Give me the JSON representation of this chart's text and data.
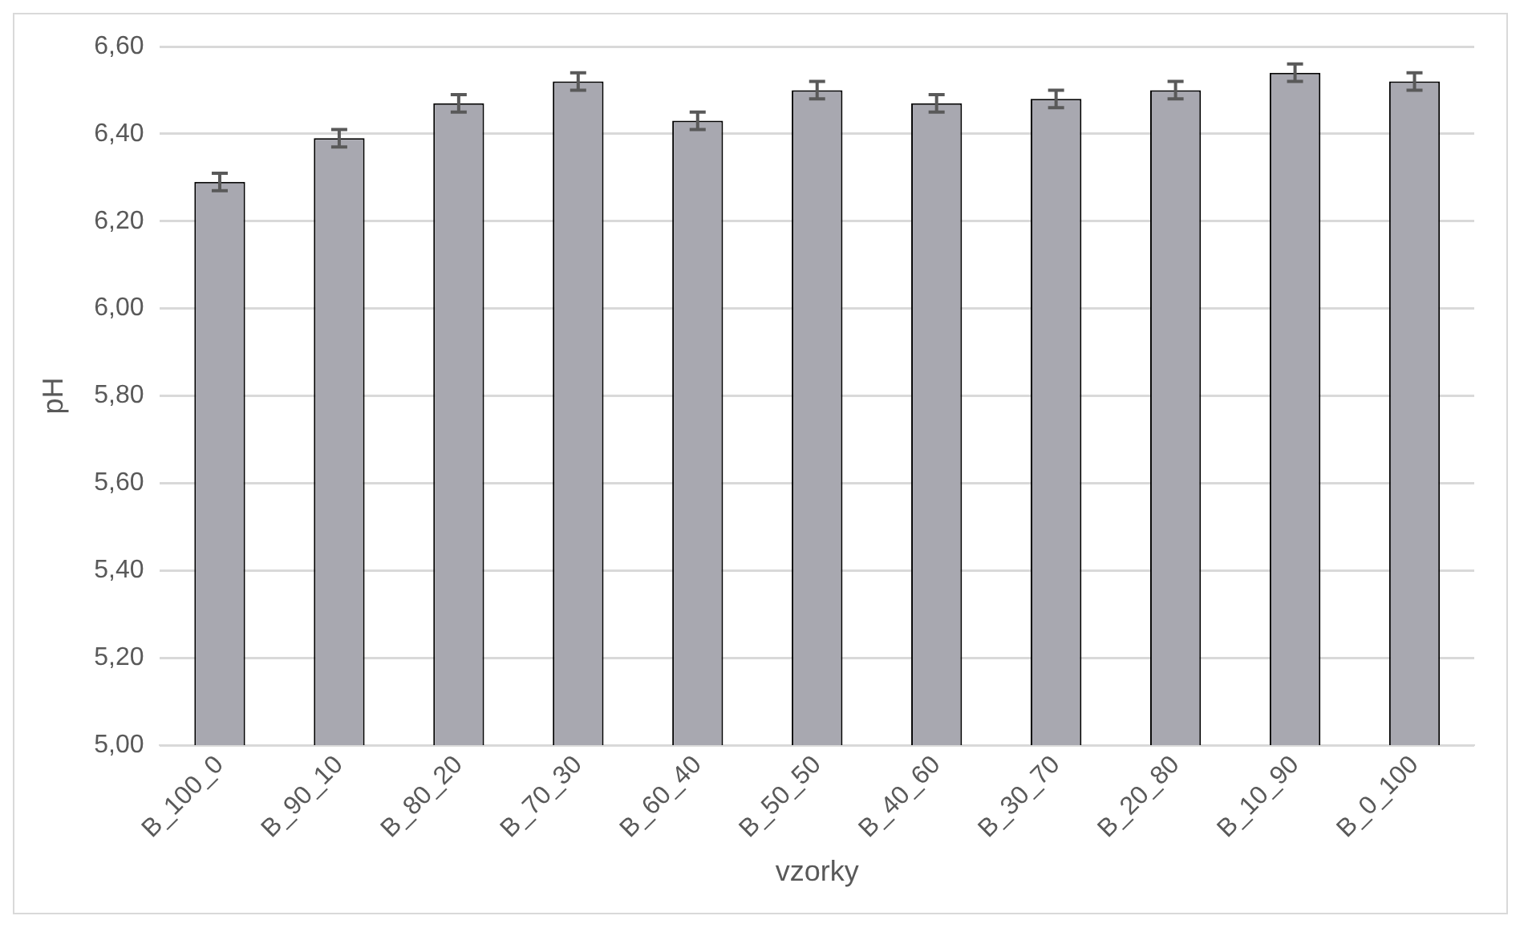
{
  "chart_data": {
    "type": "bar",
    "xlabel": "vzorky",
    "ylabel": "pH",
    "categories": [
      "B_100_0",
      "B_90_10",
      "B_80_20",
      "B_70_30",
      "B_60_40",
      "B_50_50",
      "B_40_60",
      "B_30_70",
      "B_20_80",
      "B_10_90",
      "B_0_100"
    ],
    "series": [
      {
        "color": "#a8a8b0",
        "values": [
          6.29,
          6.39,
          6.47,
          6.52,
          6.43,
          6.5,
          6.47,
          6.48,
          6.5,
          6.54,
          6.52
        ],
        "errors": [
          0.02,
          0.02,
          0.02,
          0.02,
          0.02,
          0.02,
          0.02,
          0.02,
          0.02,
          0.02,
          0.02
        ]
      }
    ],
    "ylim": [
      5,
      6.6
    ],
    "yticks": [
      {
        "value": 5,
        "label": "5,00"
      },
      {
        "value": 5.2,
        "label": "5,20"
      },
      {
        "value": 5.4,
        "label": "5,40"
      },
      {
        "value": 5.6,
        "label": "5,60"
      },
      {
        "value": 5.8,
        "label": "5,80"
      },
      {
        "value": 6,
        "label": "6,00"
      },
      {
        "value": 6.2,
        "label": "6,20"
      },
      {
        "value": 6.4,
        "label": "6,40"
      },
      {
        "value": 6.6,
        "label": "6,60"
      }
    ],
    "grid": "y",
    "legend": false
  }
}
